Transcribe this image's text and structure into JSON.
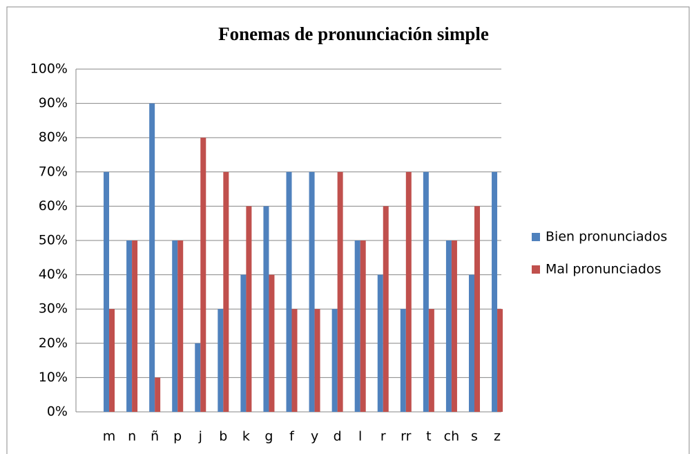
{
  "chart_data": {
    "type": "bar",
    "title": "Fonemas de pronunciación simple",
    "categories": [
      "m",
      "n",
      "ñ",
      "p",
      "j",
      "b",
      "k",
      "g",
      "f",
      "y",
      "d",
      "l",
      "r",
      "rr",
      "t",
      "ch",
      "s",
      "z"
    ],
    "series": [
      {
        "name": "Bien pronunciados",
        "color": "#4f81bd",
        "values": [
          70,
          50,
          90,
          50,
          20,
          30,
          40,
          60,
          70,
          70,
          30,
          50,
          40,
          30,
          70,
          50,
          40,
          70
        ]
      },
      {
        "name": "Mal pronunciados",
        "color": "#c0504d",
        "values": [
          30,
          50,
          10,
          50,
          80,
          70,
          60,
          40,
          30,
          30,
          70,
          50,
          60,
          70,
          30,
          50,
          60,
          30
        ]
      }
    ],
    "ylim": [
      0,
      100
    ],
    "yticks": [
      {
        "value": 0,
        "label": "0%"
      },
      {
        "value": 10,
        "label": "10%"
      },
      {
        "value": 20,
        "label": "20%"
      },
      {
        "value": 30,
        "label": "30%"
      },
      {
        "value": 40,
        "label": "40%"
      },
      {
        "value": 50,
        "label": "50%"
      },
      {
        "value": 60,
        "label": "60%"
      },
      {
        "value": 70,
        "label": "70%"
      },
      {
        "value": 80,
        "label": "80%"
      },
      {
        "value": 90,
        "label": "90%"
      },
      {
        "value": 100,
        "label": "100%"
      }
    ],
    "grid": true,
    "legend": "right"
  }
}
